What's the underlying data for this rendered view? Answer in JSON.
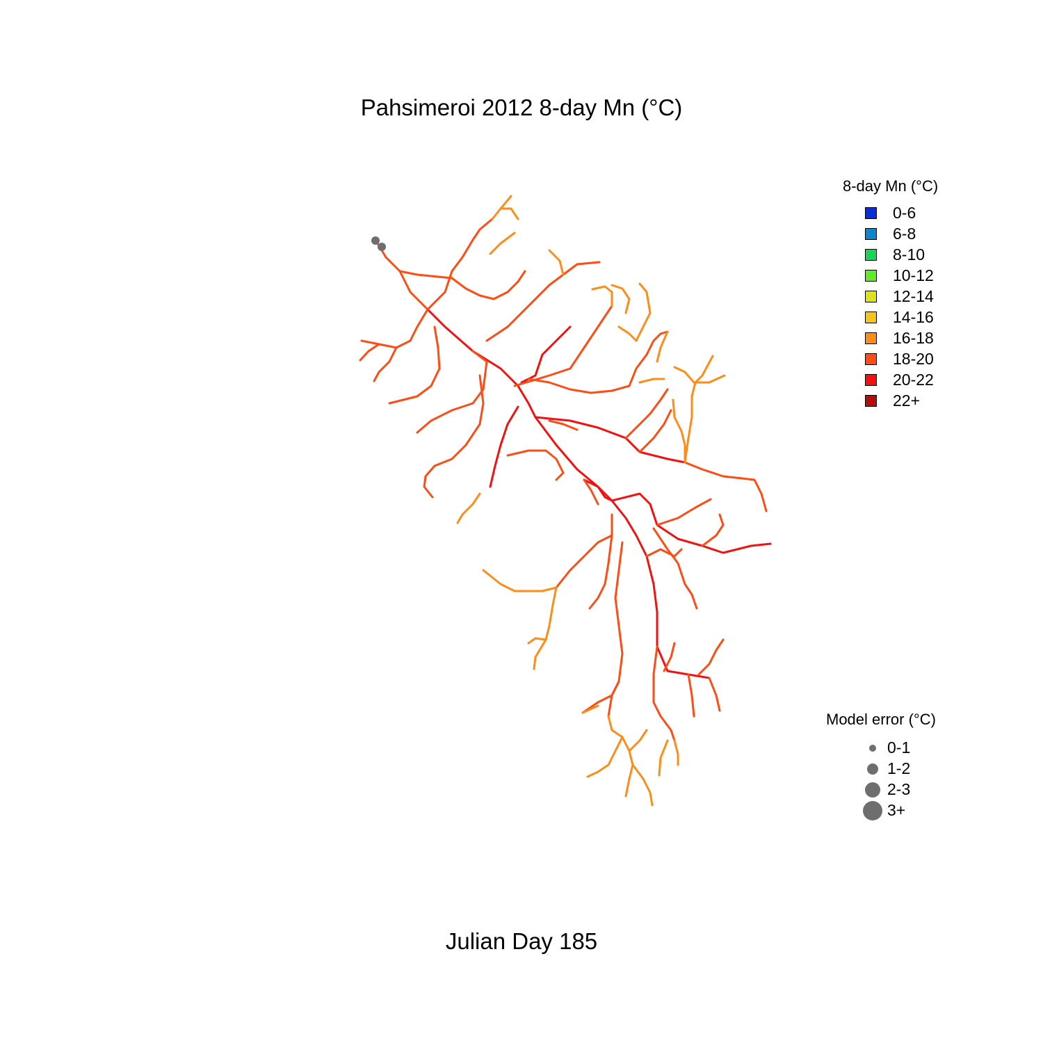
{
  "title": "Pahsimeroi 2012 8-day Mn (°C)",
  "footer": "Julian Day 185",
  "temp_legend": {
    "title": "8-day Mn (°C)",
    "items": [
      {
        "label": "0-6",
        "color": "#0a2be0"
      },
      {
        "label": "6-8",
        "color": "#0b86cf"
      },
      {
        "label": "8-10",
        "color": "#18d45a"
      },
      {
        "label": "10-12",
        "color": "#63ea2c"
      },
      {
        "label": "12-14",
        "color": "#dde21a"
      },
      {
        "label": "14-16",
        "color": "#f7c51a"
      },
      {
        "label": "16-18",
        "color": "#ff8c19"
      },
      {
        "label": "18-20",
        "color": "#ff4c14"
      },
      {
        "label": "20-22",
        "color": "#f41010"
      },
      {
        "label": "22+",
        "color": "#b50c0c"
      }
    ]
  },
  "error_legend": {
    "title": "Model error (°C)",
    "items": [
      {
        "label": "0-1",
        "size": 1
      },
      {
        "label": "1-2",
        "size": 2
      },
      {
        "label": "2-3",
        "size": 3
      },
      {
        "label": "3+",
        "size": 4
      }
    ],
    "point_color": "#6e6e6e"
  },
  "observation_sites": [
    {
      "error_class": "1-2"
    },
    {
      "error_class": "1-2"
    }
  ]
}
